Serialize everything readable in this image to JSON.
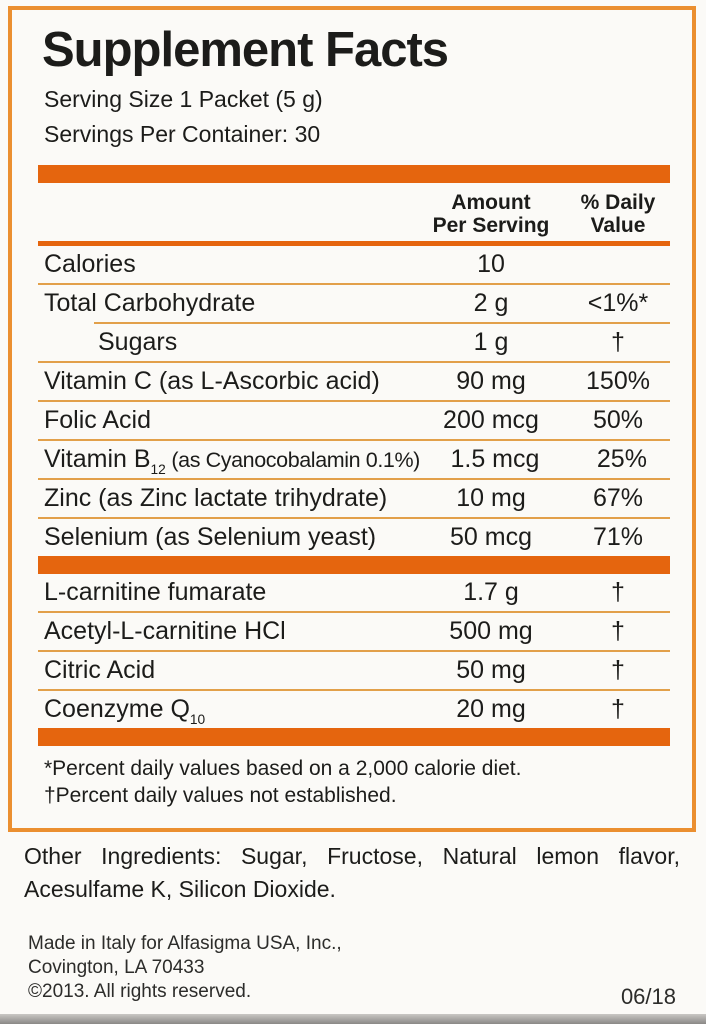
{
  "label": {
    "title": "Supplement Facts",
    "serving_size": "Serving Size 1 Packet (5 g)",
    "servings_per_container": "Servings Per Container: 30",
    "header": {
      "amount_line1": "Amount",
      "amount_line2": "Per Serving",
      "dv_line1": "% Daily",
      "dv_line2": "Value"
    },
    "rows": {
      "section1": [
        {
          "name": "Calories",
          "sub": "",
          "note": "",
          "amount": "10",
          "dv": "",
          "indent": false,
          "divider": "full",
          "small_note": false
        },
        {
          "name": "Total Carbohydrate",
          "sub": "",
          "note": "",
          "amount": "2 g",
          "dv": "<1%*",
          "indent": false,
          "divider": "indent",
          "small_note": false
        },
        {
          "name": "Sugars",
          "sub": "",
          "note": "",
          "amount": "1 g",
          "dv": "†",
          "indent": true,
          "divider": "full",
          "small_note": false
        },
        {
          "name": "Vitamin C",
          "sub": "",
          "note": " (as L-Ascorbic acid)",
          "amount": "90 mg",
          "dv": "150%",
          "indent": false,
          "divider": "full",
          "small_note": false
        },
        {
          "name": "Folic Acid",
          "sub": "",
          "note": "",
          "amount": "200 mcg",
          "dv": "50%",
          "indent": false,
          "divider": "full",
          "small_note": false
        },
        {
          "name": "Vitamin B",
          "sub": "12",
          "note": " (as Cyanocobalamin 0.1%)",
          "amount": "1.5 mcg",
          "dv": "25%",
          "indent": false,
          "divider": "full",
          "small_note": true
        },
        {
          "name": "Zinc",
          "sub": "",
          "note": " (as Zinc lactate trihydrate)",
          "amount": "10 mg",
          "dv": "67%",
          "indent": false,
          "divider": "full",
          "small_note": false
        },
        {
          "name": "Selenium",
          "sub": "",
          "note": " (as Selenium yeast)",
          "amount": "50 mcg",
          "dv": "71%",
          "indent": false,
          "divider": "none",
          "small_note": false
        }
      ],
      "section2": [
        {
          "name": "L-carnitine fumarate",
          "sub": "",
          "note": "",
          "amount": "1.7 g",
          "dv": "†",
          "indent": false,
          "divider": "full",
          "small_note": false
        },
        {
          "name": "Acetyl-L-carnitine HCl",
          "sub": "",
          "note": "",
          "amount": "500 mg",
          "dv": "†",
          "indent": false,
          "divider": "full",
          "small_note": false
        },
        {
          "name": "Citric Acid",
          "sub": "",
          "note": "",
          "amount": "50 mg",
          "dv": "†",
          "indent": false,
          "divider": "full",
          "small_note": false
        },
        {
          "name": "Coenzyme Q",
          "sub": "10",
          "note": "",
          "amount": "20 mg",
          "dv": "†",
          "indent": false,
          "divider": "none",
          "small_note": false
        }
      ]
    },
    "footnotes": [
      "*Percent daily values based on a 2,000 calorie diet.",
      "†Percent daily values not established."
    ],
    "other_ingredients": "Other Ingredients: Sugar, Fructose, Natural lemon flavor, Acesulfame K, Silicon Dioxide.",
    "manufacturer": [
      "Made in Italy for Alfasigma USA, Inc.,",
      "Covington, LA 70433",
      "©2013. All rights reserved."
    ],
    "date_code": "06/18",
    "colors": {
      "bar": "#e5650e",
      "frame": "#eb8f30",
      "divider": "#e2a04a",
      "text": "#1c1c1a",
      "edge": "#8a8886"
    }
  }
}
